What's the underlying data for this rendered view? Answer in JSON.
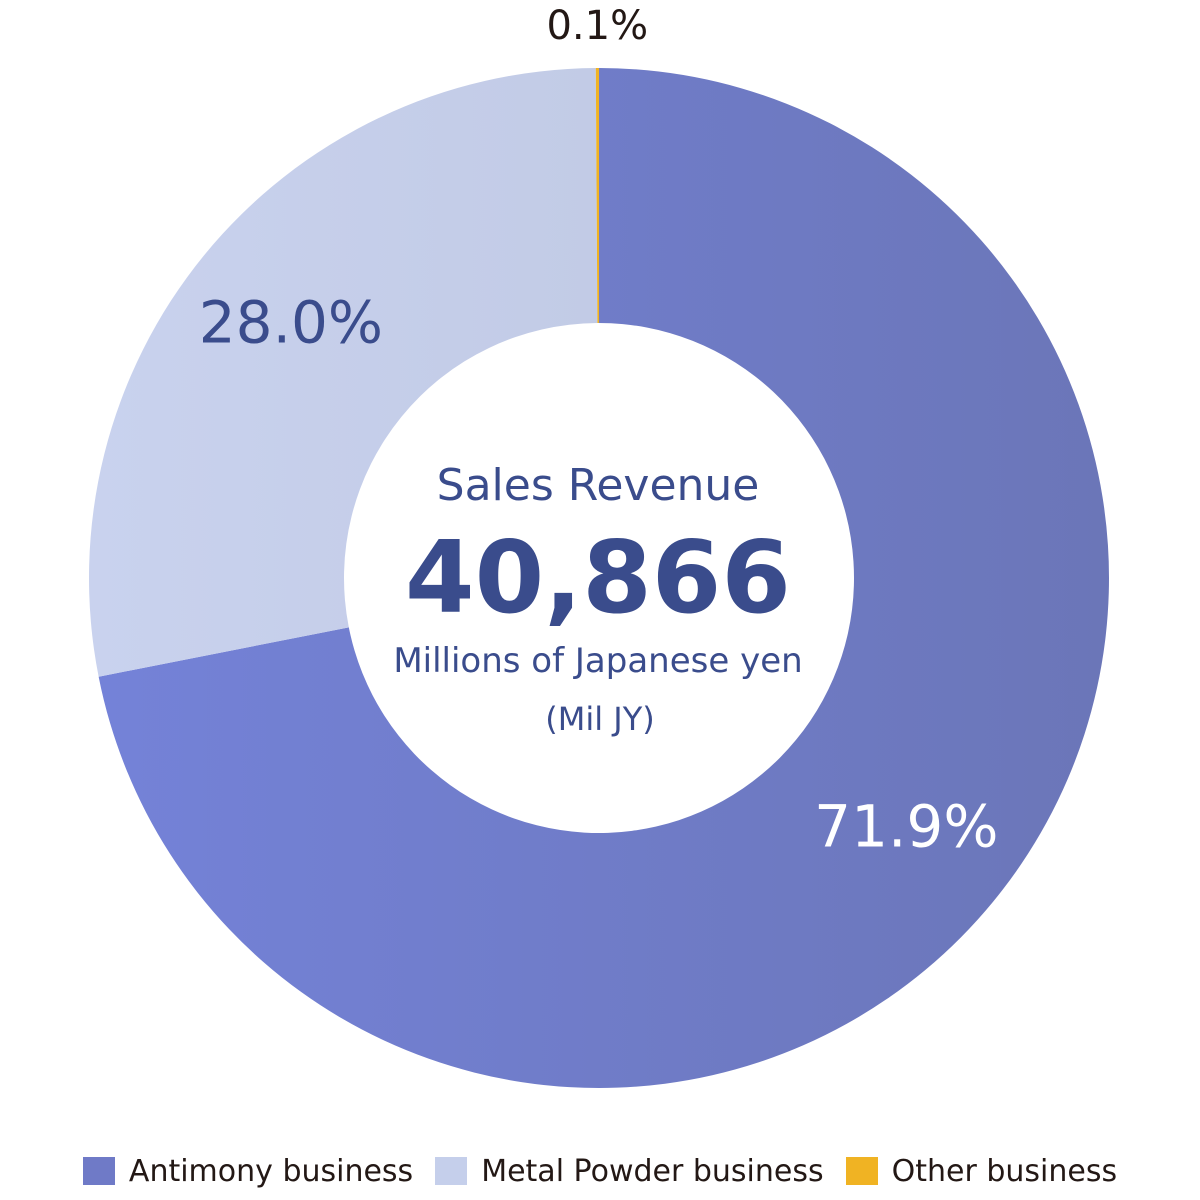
{
  "chart_data": {
    "type": "pie",
    "variant": "donut",
    "categories": [
      "Antimony business",
      "Metal Powder business",
      "Other business"
    ],
    "values": [
      71.9,
      28.0,
      0.1
    ],
    "value_labels": [
      "71.9%",
      "28.0%",
      "0.1%"
    ],
    "colors": [
      "#6F7AC7",
      "#C5CFEB",
      "#F0B323"
    ],
    "label_colors": [
      "#FFFFFF",
      "#3A4C8C",
      "#231815"
    ],
    "start_angle": "12 o'clock, clockwise",
    "center": {
      "heading": "Sales Revenue",
      "value": "40,866",
      "unit": "Millions of Japanese yen",
      "unit_abbr": "(Mil JY)"
    },
    "legend_placement": "bottom"
  },
  "colors": {
    "center_text": "#3A4C8C",
    "legend_text": "#231815"
  }
}
